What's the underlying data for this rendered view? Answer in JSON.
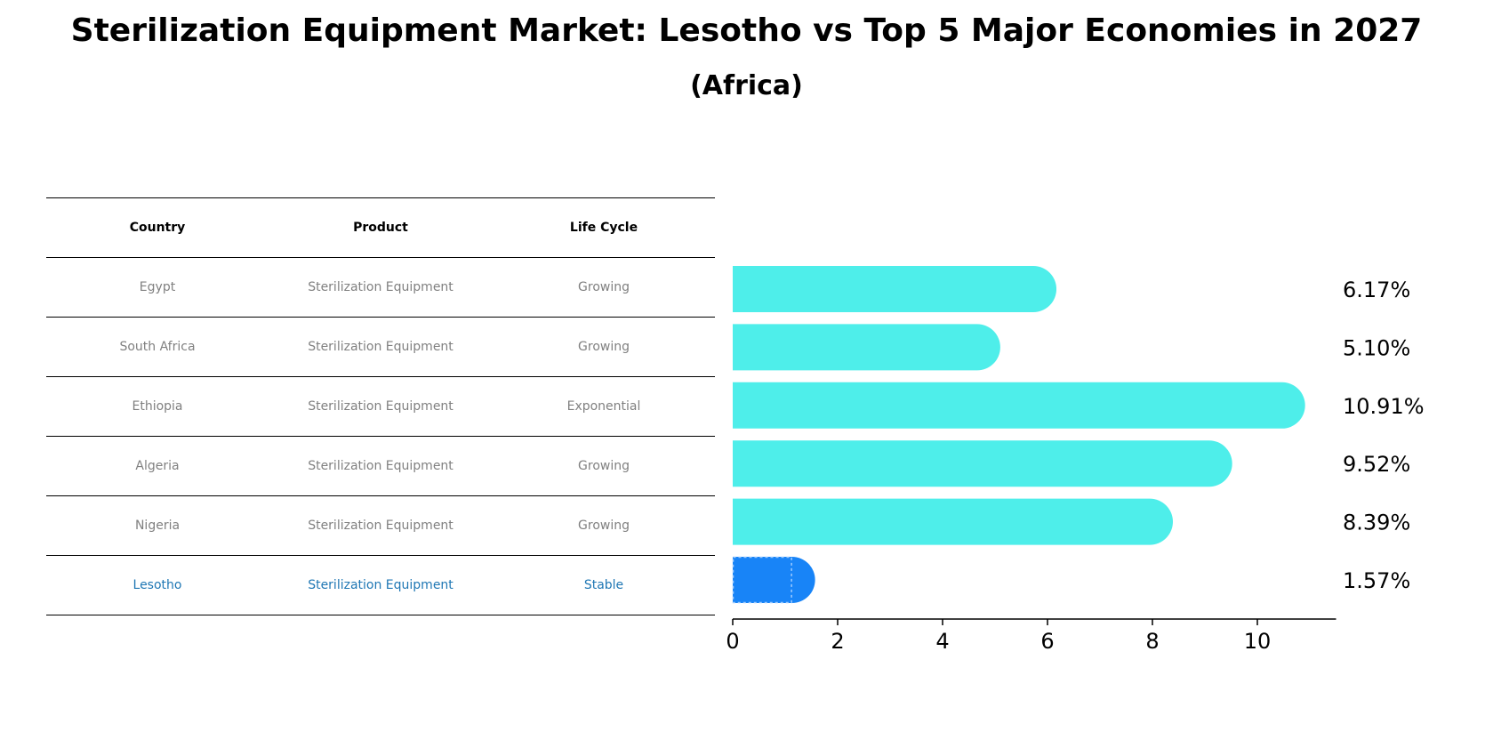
{
  "title": "Sterilization Equipment Market: Lesotho vs Top 5 Major Economies in 2027",
  "subtitle": "(Africa)",
  "table": {
    "headers": [
      "Country",
      "Product",
      "Life Cycle"
    ],
    "rows": [
      [
        "Egypt",
        "Sterilization Equipment",
        "Growing"
      ],
      [
        "South Africa",
        "Sterilization Equipment",
        "Growing"
      ],
      [
        "Ethiopia",
        "Sterilization Equipment",
        "Exponential"
      ],
      [
        "Algeria",
        "Sterilization Equipment",
        "Growing"
      ],
      [
        "Nigeria",
        "Sterilization Equipment",
        "Growing"
      ],
      [
        "Lesotho",
        "Sterilization Equipment",
        "Stable"
      ]
    ],
    "highlight_color": "#1f77b4",
    "text_color": "#808080"
  },
  "chart_data": {
    "type": "bar",
    "orientation": "horizontal",
    "categories": [
      "Egypt",
      "South Africa",
      "Ethiopia",
      "Algeria",
      "Nigeria",
      "Lesotho"
    ],
    "values": [
      6.17,
      5.1,
      10.91,
      9.52,
      8.39,
      1.57
    ],
    "labels": [
      "6.17%",
      "5.10%",
      "10.91%",
      "9.52%",
      "8.39%",
      "1.57%"
    ],
    "xlim": [
      0,
      11.5
    ],
    "xticks": [
      0,
      2,
      4,
      6,
      8,
      10
    ],
    "colors": {
      "default": "#4eeeea",
      "highlight": "#1884f7"
    },
    "highlight_index": 5,
    "grid": false
  }
}
